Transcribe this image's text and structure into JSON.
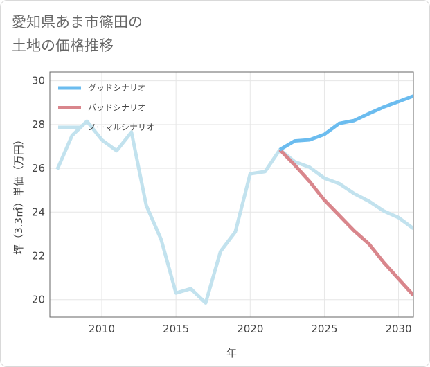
{
  "title": "愛知県あま市篠田の\n土地の価格推移",
  "chart_data": {
    "type": "line",
    "xlabel": "年",
    "ylabel": "坪（3.3㎡）単価（万円）",
    "xlim": [
      2006.5,
      2031
    ],
    "ylim": [
      19.2,
      30.4
    ],
    "xticks": [
      2010,
      2015,
      2020,
      2025,
      2030
    ],
    "yticks": [
      20,
      22,
      24,
      26,
      28,
      30
    ],
    "grid": true,
    "legend_position": "top-left",
    "series": [
      {
        "name": "グッドシナリオ",
        "color": "#6bbcef",
        "x": [
          2022,
          2023,
          2024,
          2025,
          2026,
          2027,
          2028,
          2029,
          2030,
          2031
        ],
        "y": [
          26.85,
          27.25,
          27.3,
          27.55,
          28.05,
          28.18,
          28.5,
          28.8,
          29.05,
          29.3
        ]
      },
      {
        "name": "バッドシナリオ",
        "color": "#d9868c",
        "x": [
          2022,
          2023,
          2024,
          2025,
          2026,
          2027,
          2028,
          2029,
          2030,
          2031
        ],
        "y": [
          26.85,
          26.15,
          25.4,
          24.55,
          23.85,
          23.15,
          22.55,
          21.7,
          20.95,
          20.2
        ]
      },
      {
        "name": "ノーマルシナリオ",
        "color": "#c2e2ee",
        "x": [
          2007,
          2008,
          2009,
          2010,
          2011,
          2012,
          2013,
          2014,
          2015,
          2016,
          2017,
          2018,
          2019,
          2020,
          2021,
          2022,
          2023,
          2024,
          2025,
          2026,
          2027,
          2028,
          2029,
          2030,
          2031
        ],
        "y": [
          25.95,
          27.5,
          28.15,
          27.3,
          26.8,
          27.65,
          24.3,
          22.75,
          20.3,
          20.5,
          19.85,
          22.2,
          23.1,
          25.75,
          25.85,
          26.85,
          26.3,
          26.05,
          25.55,
          25.3,
          24.85,
          24.5,
          24.05,
          23.75,
          23.25
        ]
      }
    ]
  }
}
